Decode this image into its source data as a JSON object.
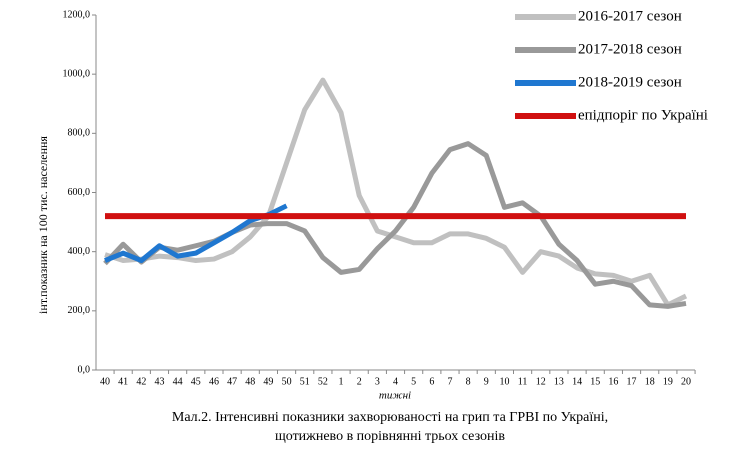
{
  "chart_data": {
    "type": "line",
    "y_label": "інт.показник на 100 тис. населення",
    "x_label": "тижні",
    "caption": [
      "Мал.2. Інтенсивні показники захворюваності на грип та ГРВІ по Україні,",
      "щотижнево в порівнянні трьох сезонів"
    ],
    "categories": [
      "40",
      "41",
      "42",
      "43",
      "44",
      "45",
      "46",
      "47",
      "48",
      "49",
      "50",
      "51",
      "52",
      "1",
      "2",
      "3",
      "4",
      "5",
      "6",
      "7",
      "8",
      "9",
      "10",
      "11",
      "12",
      "13",
      "14",
      "15",
      "16",
      "17",
      "18",
      "19",
      "20"
    ],
    "ylim": [
      0,
      1200
    ],
    "yticks": [
      {
        "value": 0,
        "label": "0,0"
      },
      {
        "value": 200,
        "label": "200,0"
      },
      {
        "value": 400,
        "label": "400,0"
      },
      {
        "value": 600,
        "label": "600,0"
      },
      {
        "value": 800,
        "label": "800,0"
      },
      {
        "value": 1000,
        "label": "1000,0"
      },
      {
        "value": 1200,
        "label": "1200,0"
      }
    ],
    "series": [
      {
        "name": "2016-2017 сезон",
        "color": "#c0c0c0",
        "values": [
          390,
          370,
          375,
          385,
          380,
          370,
          375,
          400,
          450,
          520,
          700,
          880,
          980,
          870,
          590,
          470,
          450,
          430,
          430,
          460,
          460,
          445,
          415,
          330,
          400,
          385,
          345,
          325,
          320,
          300,
          320,
          220,
          250
        ]
      },
      {
        "name": "2017-2018 сезон",
        "color": "#999999",
        "values": [
          360,
          425,
          365,
          415,
          405,
          420,
          435,
          465,
          490,
          495,
          495,
          470,
          380,
          330,
          340,
          410,
          470,
          550,
          665,
          745,
          765,
          725,
          550,
          565,
          520,
          425,
          370,
          290,
          300,
          285,
          220,
          215,
          225
        ]
      },
      {
        "name": "2018-2019 сезон",
        "color": "#1f77d0",
        "values": [
          370,
          395,
          370,
          420,
          385,
          395,
          430,
          465,
          505,
          525,
          555,
          null,
          null,
          null,
          null,
          null,
          null,
          null,
          null,
          null,
          null,
          null,
          null,
          null,
          null,
          null,
          null,
          null,
          null,
          null,
          null,
          null,
          null
        ]
      },
      {
        "name": "епідпоріг по Україні",
        "color": "#d01010",
        "values": [
          520,
          520,
          520,
          520,
          520,
          520,
          520,
          520,
          520,
          520,
          520,
          520,
          520,
          520,
          520,
          520,
          520,
          520,
          520,
          520,
          520,
          520,
          520,
          520,
          520,
          520,
          520,
          520,
          520,
          520,
          520,
          520,
          520
        ]
      }
    ]
  }
}
